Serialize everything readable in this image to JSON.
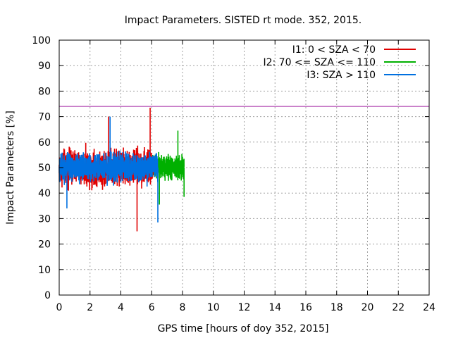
{
  "chart_data": {
    "type": "line",
    "title": "Impact Parameters. SISTED rt mode. 352, 2015.",
    "xlabel": "GPS time [hours of doy 352, 2015]",
    "ylabel": "Impact Parameters [%]",
    "xlim": [
      0,
      24
    ],
    "ylim": [
      0,
      100
    ],
    "x_ticks": [
      0,
      2,
      4,
      6,
      8,
      10,
      12,
      14,
      16,
      18,
      20,
      22,
      24
    ],
    "y_ticks": [
      0,
      10,
      20,
      30,
      40,
      50,
      60,
      70,
      80,
      90,
      100
    ],
    "grid": true,
    "legend_position": "top-right",
    "series": [
      {
        "name": "I1: 0 < SZA < 70",
        "color": "#e00000",
        "x_range": [
          0,
          6.1
        ],
        "center": 50,
        "spread": 10,
        "extremes": [
          {
            "x": 5.05,
            "y": 25
          },
          {
            "x": 5.9,
            "y": 73.5
          },
          {
            "x": 3.2,
            "y": 70
          }
        ]
      },
      {
        "name": "I2: 70 <= SZA <= 110",
        "color": "#00b000",
        "x_range": [
          5.8,
          8.1
        ],
        "center": 50,
        "spread": 7,
        "extremes": [
          {
            "x": 6.5,
            "y": 35.5
          },
          {
            "x": 7.7,
            "y": 64.5
          },
          {
            "x": 8.1,
            "y": 38.5
          }
        ]
      },
      {
        "name": "I3: SZA > 110",
        "color": "#0070e0",
        "x_range": [
          0,
          6.4
        ],
        "center": 50,
        "spread": 8,
        "extremes": [
          {
            "x": 0.5,
            "y": 34
          },
          {
            "x": 6.4,
            "y": 28.5
          },
          {
            "x": 3.3,
            "y": 70
          }
        ]
      }
    ],
    "reference_line": {
      "y": 74,
      "color": "#a020a0"
    }
  }
}
